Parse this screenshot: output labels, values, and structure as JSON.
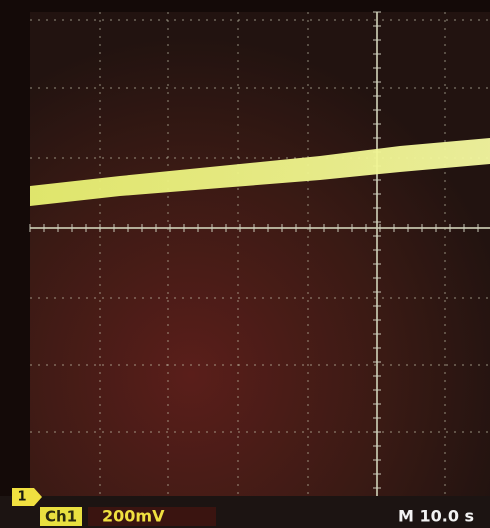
{
  "readout": {
    "marker": "1",
    "channel": "Ch1",
    "scale": "200mV",
    "timebase": "M 10.0 s"
  }
}
